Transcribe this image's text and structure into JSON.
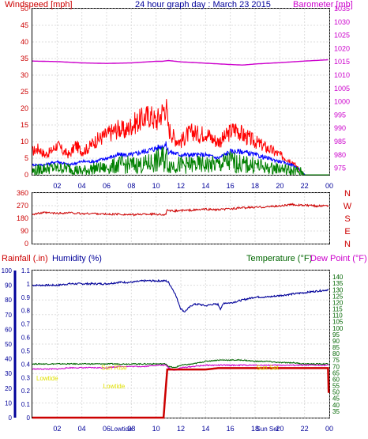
{
  "header": {
    "wind_label": "Windspeed [mph]",
    "title": "24 hour graph day : March 23 2015",
    "baro_label": "Barometer [mb]"
  },
  "lower_header": {
    "rain_label": "Rainfall (.in)",
    "humidity_label": "Humidity (%)",
    "temp_label": "Temperature (°F)",
    "dew_label": "Dew Point (°F)"
  },
  "colors": {
    "wind_gust": "#ff0000",
    "wind_avg": "#0000ff",
    "wind_speed": "#008000",
    "barometer": "#cc00cc",
    "direction": "#cc0000",
    "humidity": "#000099",
    "temperature": "#006600",
    "dewpoint": "#cc00cc",
    "rain": "#cc0000",
    "annotation": "#e0e000"
  },
  "chart_data": [
    {
      "type": "line",
      "name": "wind_baro",
      "title": "24 hour graph day : March 23 2015",
      "ylabel": "Windspeed [mph]",
      "y2label": "Barometer [mb]",
      "x_ticks": [
        "02",
        "04",
        "06",
        "08",
        "10",
        "12",
        "14",
        "16",
        "18",
        "20",
        "22",
        "00"
      ],
      "x_range": [
        0,
        24
      ],
      "ylim": [
        0,
        50
      ],
      "y_ticks": [
        0,
        5,
        10,
        15,
        20,
        25,
        30,
        35,
        40,
        45,
        50
      ],
      "y2lim": [
        972.5,
        1035
      ],
      "y2_ticks": [
        975,
        980,
        985,
        990,
        995,
        1000,
        1005,
        1010,
        1015,
        1020,
        1025,
        1030,
        1035
      ],
      "grid": true,
      "series": [
        {
          "name": "gust",
          "axis": "y",
          "x": [
            0,
            0.5,
            1,
            1.5,
            2,
            2.5,
            3,
            3.5,
            4,
            4.5,
            5,
            5.5,
            6,
            6.5,
            7,
            7.5,
            8,
            8.5,
            9,
            9.5,
            10,
            10.5,
            10.8,
            11,
            11.5,
            12,
            12.5,
            13,
            13.5,
            14,
            14.5,
            15,
            15.5,
            16,
            16.5,
            17,
            17.5,
            18,
            18.5,
            19,
            19.5,
            20,
            20.5,
            21,
            21.5,
            22,
            22.5,
            23,
            23.5,
            24
          ],
          "values": [
            7,
            8,
            6,
            7,
            9,
            7,
            6,
            9,
            7,
            8,
            10,
            11,
            12,
            13,
            14,
            13,
            15,
            16,
            17,
            18,
            16,
            19,
            21,
            14,
            11,
            10,
            12,
            13,
            12,
            13,
            11,
            10,
            11,
            13,
            14,
            12,
            11,
            10,
            9,
            8,
            7,
            6,
            5,
            4,
            2,
            0,
            0,
            0,
            0,
            0
          ]
        },
        {
          "name": "average",
          "axis": "y",
          "x": [
            0,
            1,
            2,
            3,
            4,
            5,
            6,
            7,
            8,
            9,
            10,
            10.8,
            11,
            12,
            13,
            14,
            15,
            16,
            17,
            18,
            19,
            20,
            21,
            21.5,
            22,
            23,
            24
          ],
          "values": [
            3,
            3,
            4,
            3,
            4,
            4,
            5,
            6,
            6,
            7,
            8,
            9,
            7,
            6,
            6,
            6,
            5,
            7,
            7,
            6,
            5,
            4,
            3,
            2,
            0,
            0,
            0
          ]
        },
        {
          "name": "speed",
          "axis": "y",
          "x": [
            0,
            1,
            2,
            3,
            4,
            5,
            6,
            7,
            8,
            9,
            10,
            10.8,
            11,
            12,
            13,
            14,
            15,
            16,
            17,
            18,
            19,
            20,
            21,
            21.5,
            22,
            23,
            24
          ],
          "values": [
            1,
            2,
            2,
            2,
            1,
            2,
            2,
            3,
            3,
            3,
            4,
            5,
            3,
            3,
            3,
            3,
            3,
            4,
            3,
            3,
            2,
            2,
            1,
            1,
            0,
            0,
            0
          ]
        },
        {
          "name": "barometer",
          "axis": "y2",
          "x": [
            0,
            2,
            4,
            6,
            8,
            10,
            10.5,
            11,
            12,
            14,
            16,
            17,
            18,
            20,
            22,
            24
          ],
          "values": [
            1015.3,
            1015.1,
            1014.6,
            1014.4,
            1014.6,
            1015.2,
            1015.2,
            1015.5,
            1015.0,
            1014.5,
            1014.0,
            1013.8,
            1014.2,
            1014.7,
            1015.3,
            1015.8
          ]
        }
      ]
    },
    {
      "type": "line",
      "name": "wind_direction",
      "ylabel": "Direction",
      "x_ticks": [
        "02",
        "04",
        "06",
        "08",
        "10",
        "12",
        "14",
        "16",
        "18",
        "20",
        "22",
        "00"
      ],
      "x_range": [
        0,
        24
      ],
      "ylim": [
        0,
        360
      ],
      "y_ticks": [
        0,
        90,
        180,
        270,
        360
      ],
      "right_labels": [
        "N",
        "W",
        "S",
        "E",
        "N"
      ],
      "grid": true,
      "series": [
        {
          "name": "direction",
          "x": [
            0,
            1,
            2,
            3,
            4,
            5,
            6,
            7,
            8,
            9,
            10,
            10.8,
            10.9,
            11,
            12,
            13,
            14,
            15,
            16,
            17,
            18,
            19,
            20,
            21,
            22,
            23,
            24
          ],
          "values": [
            210,
            220,
            215,
            220,
            212,
            215,
            208,
            210,
            205,
            210,
            210,
            205,
            248,
            230,
            235,
            238,
            245,
            240,
            248,
            255,
            258,
            262,
            268,
            278,
            272,
            268,
            272
          ]
        }
      ]
    },
    {
      "type": "line",
      "name": "rain_hum_temp",
      "y_rain_lim": [
        0,
        1.1
      ],
      "y_rain_ticks": [
        0,
        0.1,
        0.2,
        0.3,
        0.4,
        0.5,
        0.6,
        0.7,
        0.8,
        0.9,
        1,
        1.1
      ],
      "y_hum_lim": [
        0,
        100
      ],
      "y_hum_ticks": [
        0,
        10,
        20,
        30,
        40,
        50,
        60,
        70,
        80,
        90,
        100
      ],
      "y_temp_lim": [
        30,
        145
      ],
      "y_temp_ticks": [
        35,
        40,
        45,
        50,
        55,
        60,
        65,
        70,
        75,
        80,
        85,
        90,
        95,
        100,
        105,
        110,
        115,
        120,
        125,
        130,
        135,
        140
      ],
      "x_ticks": [
        "02",
        "04",
        "06",
        "08",
        "10",
        "12",
        "14",
        "16",
        "18",
        "20",
        "22",
        "00"
      ],
      "x_range": [
        0,
        24
      ],
      "grid": true,
      "series": [
        {
          "name": "humidity",
          "x": [
            0,
            1,
            2,
            3,
            4,
            5,
            6,
            7,
            8,
            9,
            10,
            10.8,
            11,
            11.5,
            12,
            12.3,
            12.7,
            13,
            13.5,
            14,
            14.5,
            15,
            15.2,
            15.5,
            16,
            16.5,
            17,
            18,
            19,
            20,
            21,
            22,
            23,
            24
          ],
          "values": [
            90,
            90,
            90,
            91,
            91,
            91,
            91,
            92,
            92,
            93,
            93,
            93,
            92,
            85,
            74,
            72,
            75,
            77,
            77,
            76,
            77,
            77,
            74,
            78,
            78,
            79,
            80,
            82,
            82,
            83,
            84,
            85,
            86,
            87
          ]
        },
        {
          "name": "temperature",
          "x": [
            0,
            1,
            2,
            3,
            4,
            5,
            6,
            7,
            8,
            9,
            10,
            10.8,
            11,
            11.5,
            12,
            13,
            14,
            15,
            16,
            17,
            18,
            19,
            20,
            21,
            22,
            23,
            24
          ],
          "values": [
            72,
            72,
            72,
            72,
            72,
            72,
            72,
            72,
            72,
            72,
            72,
            72,
            70,
            69,
            71,
            72,
            74,
            75,
            75,
            75,
            74,
            74,
            73,
            73,
            72,
            72,
            72
          ],
          "axis": "temp"
        },
        {
          "name": "dewpoint",
          "x": [
            0,
            1,
            2,
            3,
            4,
            5,
            6,
            7,
            8,
            9,
            10,
            10.8,
            11,
            11.5,
            12,
            13,
            14,
            15,
            16,
            17,
            18,
            19,
            20,
            21,
            22,
            23,
            24
          ],
          "values": [
            68,
            68,
            68,
            69,
            69,
            69,
            69,
            70,
            70,
            70,
            71,
            71,
            69,
            67,
            69,
            70,
            71,
            71,
            71,
            71,
            71,
            71,
            71,
            71,
            71,
            71,
            71
          ],
          "axis": "temp"
        },
        {
          "name": "rain",
          "x": [
            0,
            1,
            2,
            3,
            4,
            5,
            6,
            7,
            8,
            9,
            10,
            10.6,
            10.9,
            11,
            12,
            13,
            14,
            15,
            16,
            17,
            18,
            19,
            20,
            21,
            22,
            23,
            23.9,
            24
          ],
          "values": [
            0,
            0,
            0,
            0,
            0,
            0,
            0,
            0,
            0,
            0,
            0,
            0,
            0.36,
            0.36,
            0.36,
            0.36,
            0.36,
            0.37,
            0.37,
            0.37,
            0.37,
            0.37,
            0.37,
            0.37,
            0.37,
            0.37,
            0.37,
            0
          ],
          "axis": "rain"
        }
      ],
      "annotations": [
        {
          "text": "Lowtide",
          "x": 1.2,
          "y": 0.22
        },
        {
          "text": "Sun Rise",
          "x": 6.6,
          "y": 0.3
        },
        {
          "text": "Lowtide",
          "x": 6.6,
          "y": 0.16
        },
        {
          "text": "Sun Set",
          "x": 19.0,
          "y": 0.3
        }
      ],
      "bottom_labels": [
        {
          "text": "Lowtide",
          "x": 7.2
        },
        {
          "text": "Sun Set",
          "x": 19.0
        }
      ]
    }
  ]
}
